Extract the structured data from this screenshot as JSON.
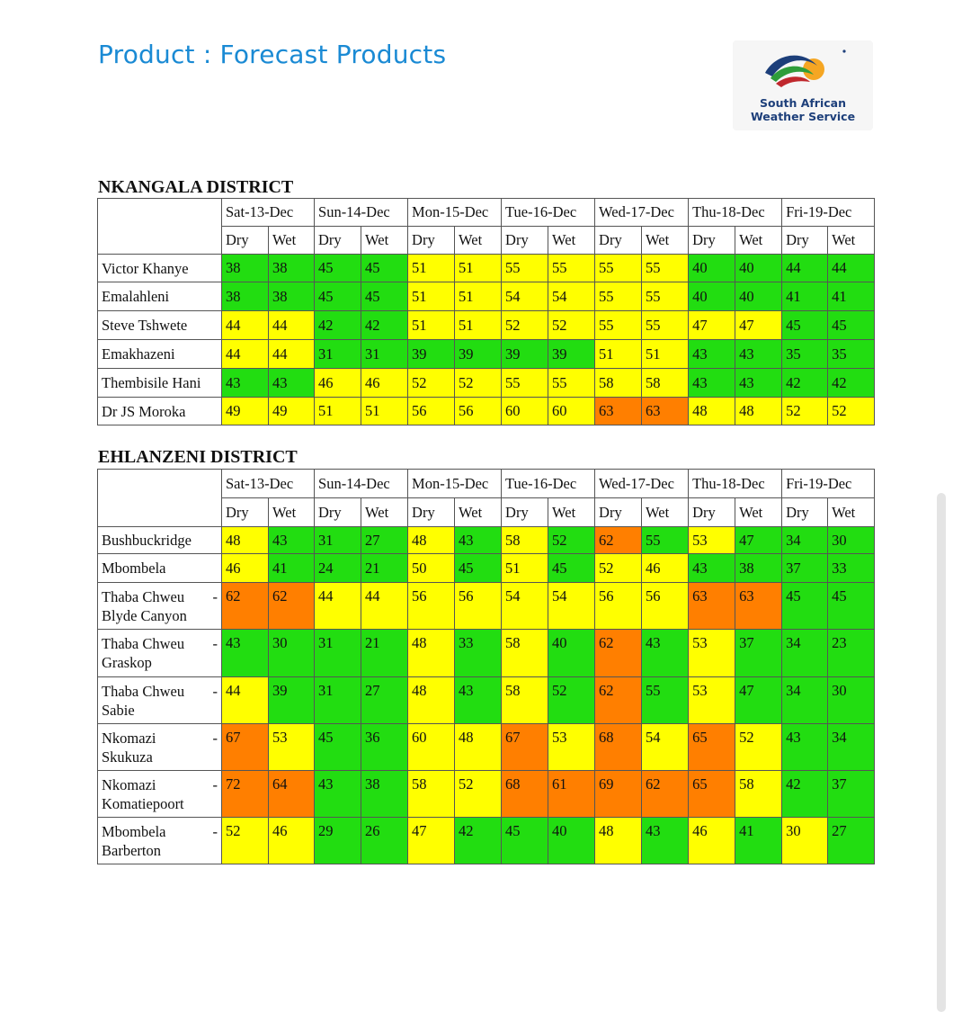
{
  "header": {
    "title": "Product : Forecast Products",
    "logo_line1": "South African",
    "logo_line2": "Weather Service"
  },
  "colors": {
    "green": "#22dd11",
    "yellow": "#ffff00",
    "orange": "#ff7f00"
  },
  "days": [
    "Sat-13-Dec",
    "Sun-14-Dec",
    "Mon-15-Dec",
    "Tue-16-Dec",
    "Wed-17-Dec",
    "Thu-18-Dec",
    "Fri-19-Dec"
  ],
  "dry_label": "Dry",
  "wet_label": "Wet",
  "districts": [
    {
      "name": "NKANGALA DISTRICT",
      "rows": [
        {
          "loc": "Victor Khanye",
          "values": [
            "38",
            "38",
            "45",
            "45",
            "51",
            "51",
            "55",
            "55",
            "55",
            "55",
            "40",
            "40",
            "44",
            "44"
          ],
          "colors": [
            "g",
            "g",
            "g",
            "g",
            "y",
            "y",
            "y",
            "y",
            "y",
            "y",
            "g",
            "g",
            "g",
            "g"
          ]
        },
        {
          "loc": "Emalahleni",
          "values": [
            "38",
            "38",
            "45",
            "45",
            "51",
            "51",
            "54",
            "54",
            "55",
            "55",
            "40",
            "40",
            "41",
            "41"
          ],
          "colors": [
            "g",
            "g",
            "g",
            "g",
            "y",
            "y",
            "y",
            "y",
            "y",
            "y",
            "g",
            "g",
            "g",
            "g"
          ]
        },
        {
          "loc": "Steve Tshwete",
          "values": [
            "44",
            "44",
            "42",
            "42",
            "51",
            "51",
            "52",
            "52",
            "55",
            "55",
            "47",
            "47",
            "45",
            "45"
          ],
          "colors": [
            "y",
            "y",
            "g",
            "g",
            "y",
            "y",
            "y",
            "y",
            "y",
            "y",
            "y",
            "y",
            "g",
            "g"
          ]
        },
        {
          "loc": "Emakhazeni",
          "values": [
            "44",
            "44",
            "31",
            "31",
            "39",
            "39",
            "39",
            "39",
            "51",
            "51",
            "43",
            "43",
            "35",
            "35"
          ],
          "colors": [
            "y",
            "y",
            "g",
            "g",
            "g",
            "g",
            "g",
            "g",
            "y",
            "y",
            "g",
            "g",
            "g",
            "g"
          ]
        },
        {
          "loc": "Thembisile Hani",
          "values": [
            "43",
            "43",
            "46",
            "46",
            "52",
            "52",
            "55",
            "55",
            "58",
            "58",
            "43",
            "43",
            "42",
            "42"
          ],
          "colors": [
            "g",
            "g",
            "y",
            "y",
            "y",
            "y",
            "y",
            "y",
            "y",
            "y",
            "g",
            "g",
            "g",
            "g"
          ]
        },
        {
          "loc": "Dr JS Moroka",
          "values": [
            "49",
            "49",
            "51",
            "51",
            "56",
            "56",
            "60",
            "60",
            "63",
            "63",
            "48",
            "48",
            "52",
            "52"
          ],
          "colors": [
            "y",
            "y",
            "y",
            "y",
            "y",
            "y",
            "y",
            "y",
            "o",
            "o",
            "y",
            "y",
            "y",
            "y"
          ]
        }
      ]
    },
    {
      "name": "EHLANZENI DISTRICT",
      "rows": [
        {
          "loc": "Bushbuckridge",
          "dash": false,
          "values": [
            "48",
            "43",
            "31",
            "27",
            "48",
            "43",
            "58",
            "52",
            "62",
            "55",
            "53",
            "47",
            "34",
            "30"
          ],
          "colors": [
            "y",
            "g",
            "g",
            "g",
            "y",
            "g",
            "y",
            "g",
            "o",
            "g",
            "y",
            "g",
            "g",
            "g"
          ]
        },
        {
          "loc": "Mbombela",
          "dash": false,
          "values": [
            "46",
            "41",
            "24",
            "21",
            "50",
            "45",
            "51",
            "45",
            "52",
            "46",
            "43",
            "38",
            "37",
            "33"
          ],
          "colors": [
            "y",
            "g",
            "g",
            "g",
            "y",
            "g",
            "y",
            "g",
            "y",
            "y",
            "g",
            "g",
            "g",
            "g"
          ]
        },
        {
          "loc": "Thaba Chweu",
          "loc2": "Blyde Canyon",
          "dash": true,
          "values": [
            "62",
            "62",
            "44",
            "44",
            "56",
            "56",
            "54",
            "54",
            "56",
            "56",
            "63",
            "63",
            "45",
            "45"
          ],
          "colors": [
            "o",
            "o",
            "y",
            "y",
            "y",
            "y",
            "y",
            "y",
            "y",
            "y",
            "o",
            "o",
            "g",
            "g"
          ]
        },
        {
          "loc": "Thaba Chweu",
          "loc2": "Graskop",
          "dash": true,
          "values": [
            "43",
            "30",
            "31",
            "21",
            "48",
            "33",
            "58",
            "40",
            "62",
            "43",
            "53",
            "37",
            "34",
            "23"
          ],
          "colors": [
            "g",
            "g",
            "g",
            "g",
            "y",
            "g",
            "y",
            "g",
            "o",
            "g",
            "y",
            "g",
            "g",
            "g"
          ]
        },
        {
          "loc": "Thaba Chweu",
          "loc2": "Sabie",
          "dash": true,
          "values": [
            "44",
            "39",
            "31",
            "27",
            "48",
            "43",
            "58",
            "52",
            "62",
            "55",
            "53",
            "47",
            "34",
            "30"
          ],
          "colors": [
            "y",
            "g",
            "g",
            "g",
            "y",
            "g",
            "y",
            "g",
            "o",
            "g",
            "y",
            "g",
            "g",
            "g"
          ]
        },
        {
          "loc": "Nkomazi",
          "loc2": "Skukuza",
          "dash": true,
          "values": [
            "67",
            "53",
            "45",
            "36",
            "60",
            "48",
            "67",
            "53",
            "68",
            "54",
            "65",
            "52",
            "43",
            "34"
          ],
          "colors": [
            "o",
            "y",
            "g",
            "g",
            "y",
            "y",
            "o",
            "y",
            "o",
            "y",
            "o",
            "y",
            "g",
            "g"
          ]
        },
        {
          "loc": "Nkomazi",
          "loc2": "Komatiepoort",
          "dash": true,
          "values": [
            "72",
            "64",
            "43",
            "38",
            "58",
            "52",
            "68",
            "61",
            "69",
            "62",
            "65",
            "58",
            "42",
            "37"
          ],
          "colors": [
            "o",
            "o",
            "g",
            "g",
            "y",
            "y",
            "o",
            "o",
            "o",
            "o",
            "o",
            "y",
            "g",
            "g"
          ]
        },
        {
          "loc": "Mbombela",
          "loc2": "Barberton",
          "dash": true,
          "values": [
            "52",
            "46",
            "29",
            "26",
            "47",
            "42",
            "45",
            "40",
            "48",
            "43",
            "46",
            "41",
            "30",
            "27"
          ],
          "colors": [
            "y",
            "y",
            "g",
            "g",
            "y",
            "g",
            "g",
            "g",
            "y",
            "g",
            "y",
            "g",
            "y",
            "g"
          ]
        }
      ]
    }
  ]
}
